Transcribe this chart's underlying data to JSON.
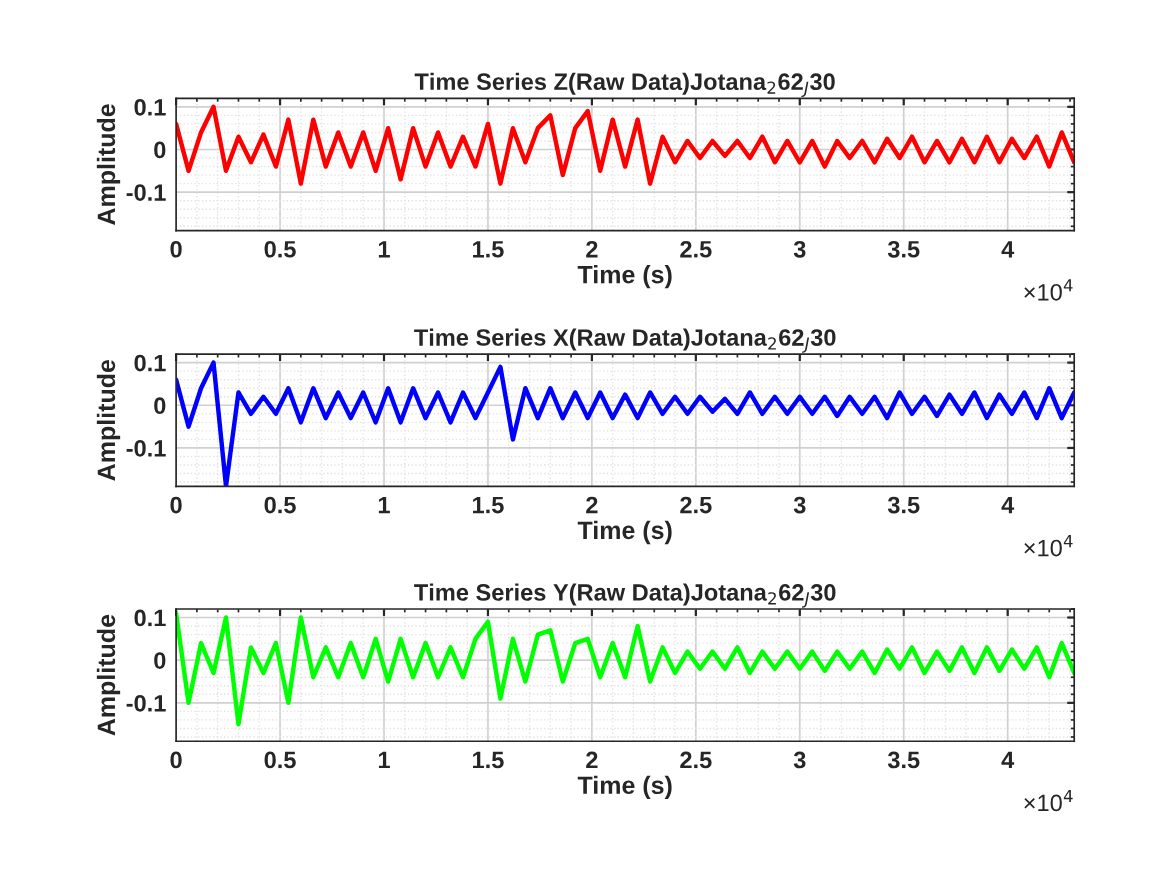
{
  "chart_data": [
    {
      "type": "line",
      "title": "Time Series Z(Raw Data)Jotana$_{2}$62$_{J}$30",
      "xlabel": "Time (s)",
      "ylabel": "Amplitude",
      "annotations": [
        "×10$^{4}$"
      ],
      "grid": true,
      "xlim": [
        0,
        4.32
      ],
      "ylim": [
        -0.19,
        0.12
      ],
      "xticks": [
        0,
        0.5,
        1,
        1.5,
        2,
        2.5,
        3,
        3.5,
        4
      ],
      "yticks": [
        -0.1,
        0,
        0.1
      ],
      "x": [
        0,
        0.06,
        0.12,
        0.18,
        0.24,
        0.3,
        0.36,
        0.42,
        0.48,
        0.54,
        0.6,
        0.66,
        0.72,
        0.78,
        0.84,
        0.9,
        0.96,
        1.02,
        1.08,
        1.14,
        1.2,
        1.26,
        1.32,
        1.38,
        1.44,
        1.5,
        1.56,
        1.62,
        1.68,
        1.74,
        1.8,
        1.86,
        1.92,
        1.98,
        2.04,
        2.1,
        2.16,
        2.22,
        2.28,
        2.34,
        2.4,
        2.46,
        2.52,
        2.58,
        2.64,
        2.7,
        2.76,
        2.82,
        2.88,
        2.94,
        3.0,
        3.06,
        3.12,
        3.18,
        3.24,
        3.3,
        3.36,
        3.42,
        3.48,
        3.54,
        3.6,
        3.66,
        3.72,
        3.78,
        3.84,
        3.9,
        3.96,
        4.02,
        4.08,
        4.14,
        4.2,
        4.26,
        4.32
      ],
      "series": [
        {
          "color": "#ff0000",
          "values": [
            0.06,
            -0.05,
            0.04,
            0.1,
            -0.05,
            0.03,
            -0.03,
            0.035,
            -0.04,
            0.07,
            -0.08,
            0.07,
            -0.04,
            0.04,
            -0.04,
            0.04,
            -0.05,
            0.05,
            -0.07,
            0.05,
            -0.04,
            0.04,
            -0.04,
            0.03,
            -0.04,
            0.06,
            -0.08,
            0.05,
            -0.03,
            0.05,
            0.08,
            -0.06,
            0.05,
            0.09,
            -0.05,
            0.07,
            -0.04,
            0.07,
            -0.08,
            0.03,
            -0.03,
            0.02,
            -0.02,
            0.02,
            -0.015,
            0.02,
            -0.02,
            0.03,
            -0.03,
            0.02,
            -0.03,
            0.02,
            -0.04,
            0.02,
            -0.02,
            0.02,
            -0.03,
            0.025,
            -0.02,
            0.03,
            -0.03,
            0.02,
            -0.03,
            0.025,
            -0.03,
            0.03,
            -0.03,
            0.025,
            -0.02,
            0.03,
            -0.04,
            0.04,
            -0.03
          ]
        }
      ]
    },
    {
      "type": "line",
      "title": "Time Series X(Raw Data)Jotana$_{2}$62$_{J}$30",
      "xlabel": "Time (s)",
      "ylabel": "Amplitude",
      "annotations": [
        "×10$^{4}$"
      ],
      "grid": true,
      "xlim": [
        0,
        4.32
      ],
      "ylim": [
        -0.19,
        0.12
      ],
      "xticks": [
        0,
        0.5,
        1,
        1.5,
        2,
        2.5,
        3,
        3.5,
        4
      ],
      "yticks": [
        -0.1,
        0,
        0.1
      ],
      "x": [
        0,
        0.06,
        0.12,
        0.18,
        0.24,
        0.3,
        0.36,
        0.42,
        0.48,
        0.54,
        0.6,
        0.66,
        0.72,
        0.78,
        0.84,
        0.9,
        0.96,
        1.02,
        1.08,
        1.14,
        1.2,
        1.26,
        1.32,
        1.38,
        1.44,
        1.5,
        1.56,
        1.62,
        1.68,
        1.74,
        1.8,
        1.86,
        1.92,
        1.98,
        2.04,
        2.1,
        2.16,
        2.22,
        2.28,
        2.34,
        2.4,
        2.46,
        2.52,
        2.58,
        2.64,
        2.7,
        2.76,
        2.82,
        2.88,
        2.94,
        3.0,
        3.06,
        3.12,
        3.18,
        3.24,
        3.3,
        3.36,
        3.42,
        3.48,
        3.54,
        3.6,
        3.66,
        3.72,
        3.78,
        3.84,
        3.9,
        3.96,
        4.02,
        4.08,
        4.14,
        4.2,
        4.26,
        4.32
      ],
      "series": [
        {
          "color": "#0000ff",
          "values": [
            0.06,
            -0.05,
            0.04,
            0.1,
            -0.19,
            0.03,
            -0.02,
            0.02,
            -0.02,
            0.04,
            -0.04,
            0.04,
            -0.03,
            0.03,
            -0.03,
            0.03,
            -0.04,
            0.04,
            -0.04,
            0.04,
            -0.03,
            0.03,
            -0.04,
            0.03,
            -0.03,
            0.03,
            0.09,
            -0.08,
            0.04,
            -0.03,
            0.04,
            -0.03,
            0.03,
            -0.03,
            0.03,
            -0.03,
            0.025,
            -0.03,
            0.03,
            -0.02,
            0.02,
            -0.02,
            0.02,
            -0.015,
            0.015,
            -0.02,
            0.03,
            -0.02,
            0.02,
            -0.02,
            0.02,
            -0.02,
            0.02,
            -0.025,
            0.02,
            -0.02,
            0.02,
            -0.03,
            0.03,
            -0.02,
            0.02,
            -0.025,
            0.025,
            -0.02,
            0.03,
            -0.03,
            0.025,
            -0.02,
            0.03,
            -0.03,
            0.04,
            -0.03,
            0.03
          ]
        }
      ]
    },
    {
      "type": "line",
      "title": "Time Series Y(Raw Data)Jotana$_{2}$62$_{J}$30",
      "xlabel": "Time (s)",
      "ylabel": "Amplitude",
      "annotations": [
        "×10$^{4}$"
      ],
      "grid": true,
      "xlim": [
        0,
        4.32
      ],
      "ylim": [
        -0.19,
        0.12
      ],
      "xticks": [
        0,
        0.5,
        1,
        1.5,
        2,
        2.5,
        3,
        3.5,
        4
      ],
      "yticks": [
        -0.1,
        0,
        0.1
      ],
      "x": [
        0,
        0.06,
        0.12,
        0.18,
        0.24,
        0.3,
        0.36,
        0.42,
        0.48,
        0.54,
        0.6,
        0.66,
        0.72,
        0.78,
        0.84,
        0.9,
        0.96,
        1.02,
        1.08,
        1.14,
        1.2,
        1.26,
        1.32,
        1.38,
        1.44,
        1.5,
        1.56,
        1.62,
        1.68,
        1.74,
        1.8,
        1.86,
        1.92,
        1.98,
        2.04,
        2.1,
        2.16,
        2.22,
        2.28,
        2.34,
        2.4,
        2.46,
        2.52,
        2.58,
        2.64,
        2.7,
        2.76,
        2.82,
        2.88,
        2.94,
        3.0,
        3.06,
        3.12,
        3.18,
        3.24,
        3.3,
        3.36,
        3.42,
        3.48,
        3.54,
        3.6,
        3.66,
        3.72,
        3.78,
        3.84,
        3.9,
        3.96,
        4.02,
        4.08,
        4.14,
        4.2,
        4.26,
        4.32
      ],
      "series": [
        {
          "color": "#00ff00",
          "values": [
            0.11,
            -0.1,
            0.04,
            -0.03,
            0.1,
            -0.15,
            0.03,
            -0.03,
            0.04,
            -0.1,
            0.1,
            -0.04,
            0.03,
            -0.04,
            0.04,
            -0.04,
            0.05,
            -0.05,
            0.05,
            -0.04,
            0.04,
            -0.04,
            0.03,
            -0.04,
            0.05,
            0.09,
            -0.09,
            0.05,
            -0.05,
            0.06,
            0.07,
            -0.05,
            0.04,
            0.05,
            -0.04,
            0.04,
            -0.04,
            0.08,
            -0.05,
            0.03,
            -0.03,
            0.02,
            -0.02,
            0.02,
            -0.02,
            0.03,
            -0.03,
            0.02,
            -0.02,
            0.02,
            -0.02,
            0.02,
            -0.025,
            0.02,
            -0.02,
            0.02,
            -0.03,
            0.025,
            -0.02,
            0.03,
            -0.03,
            0.02,
            -0.025,
            0.03,
            -0.03,
            0.03,
            -0.025,
            0.025,
            -0.02,
            0.03,
            -0.04,
            0.04,
            -0.03
          ]
        }
      ]
    }
  ]
}
